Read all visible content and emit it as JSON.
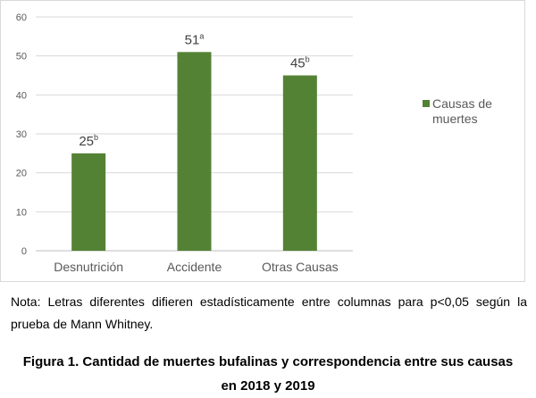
{
  "chart_data": {
    "type": "bar",
    "categories": [
      "Desnutrición",
      "Accidente",
      "Otras Causas"
    ],
    "series": [
      {
        "name": "Causas de muertes",
        "values": [
          25,
          51,
          45
        ],
        "color": "#548235"
      }
    ],
    "data_label_letters": [
      "b",
      "a",
      "b"
    ],
    "ylim": [
      0,
      60
    ],
    "yticks": [
      0,
      10,
      20,
      30,
      40,
      50,
      60
    ],
    "grid": true,
    "legend_position": "right",
    "title": "",
    "xlabel": "",
    "ylabel": ""
  },
  "legend": {
    "line1": "Causas de",
    "line2": "muertes"
  },
  "note": "Nota: Letras diferentes difieren estadísticamente entre columnas para p<0,05 según la prueba de Mann Whitney.",
  "caption": "Figura 1. Cantidad de muertes bufalinas y correspondencia entre sus causas en 2018 y 2019"
}
